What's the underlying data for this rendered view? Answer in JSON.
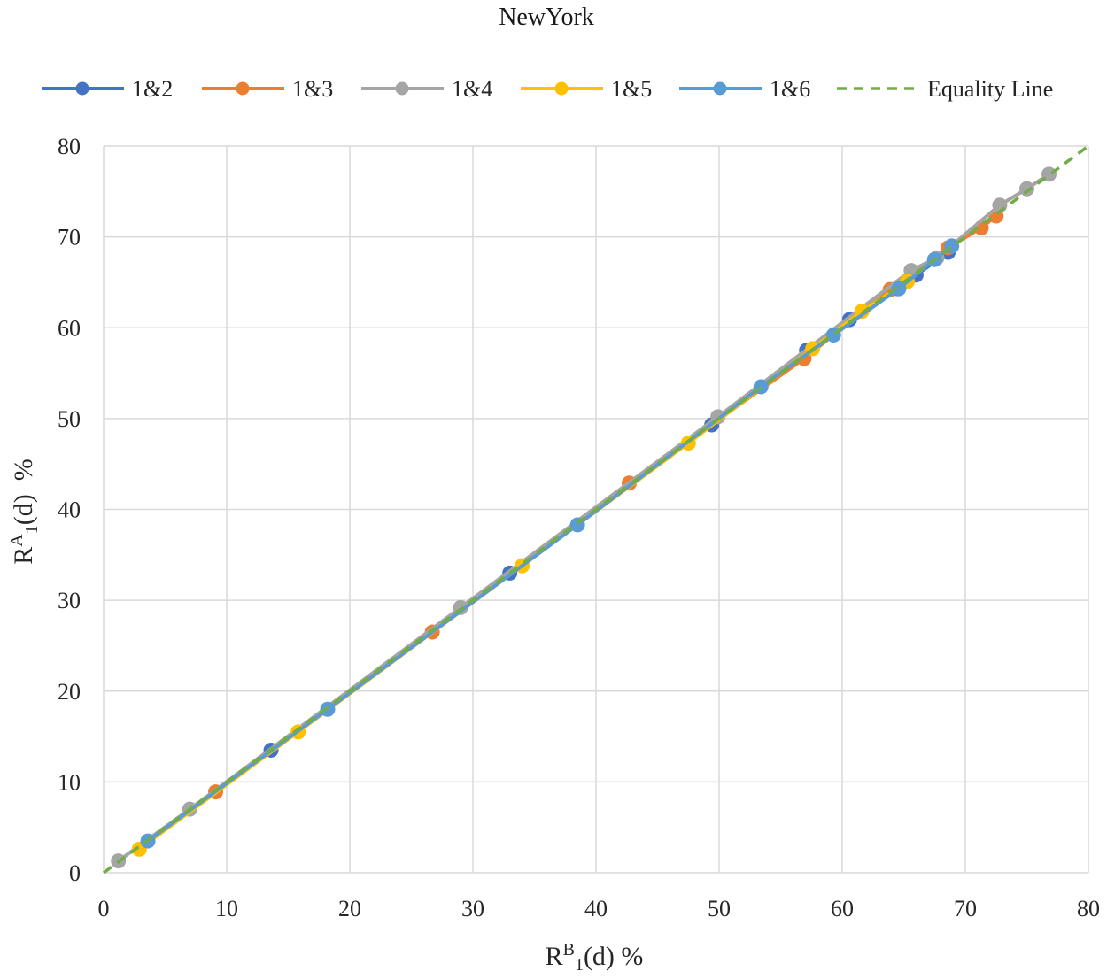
{
  "chart_data": {
    "type": "line",
    "title": "NewYork",
    "xlabel": {
      "base": "R",
      "sup": "B",
      "sub": "1",
      "tail": "(d) %"
    },
    "ylabel": {
      "base": "R",
      "sup": "A",
      "sub": "1",
      "tail": "(d)  %"
    },
    "xlim": [
      0,
      80
    ],
    "ylim": [
      0,
      80
    ],
    "xticks": [
      0,
      10,
      20,
      30,
      40,
      50,
      60,
      70,
      80
    ],
    "yticks": [
      0,
      10,
      20,
      30,
      40,
      50,
      60,
      70,
      80
    ],
    "grid": true,
    "grid_color": "#D9D9D9",
    "legend_position": "top",
    "series": [
      {
        "name": "1&2",
        "color": "#4472C4",
        "marker": "circle",
        "line_style": "solid",
        "x": [
          13.6,
          33.0,
          49.4,
          57.1,
          60.6,
          64.5,
          66.0,
          68.6
        ],
        "y": [
          13.5,
          33.0,
          49.3,
          57.5,
          60.9,
          64.3,
          65.8,
          68.3
        ]
      },
      {
        "name": "1&3",
        "color": "#ED7D31",
        "marker": "circle",
        "line_style": "solid",
        "x": [
          9.1,
          26.7,
          42.7,
          56.9,
          63.9,
          68.6,
          71.3,
          72.5
        ],
        "y": [
          8.9,
          26.5,
          42.9,
          56.6,
          64.2,
          68.8,
          71.0,
          72.3
        ]
      },
      {
        "name": "1&4",
        "color": "#A5A5A5",
        "marker": "circle",
        "line_style": "solid",
        "x": [
          1.2,
          7.0,
          29.0,
          49.9,
          65.6,
          67.7,
          72.8,
          75.0,
          76.8
        ],
        "y": [
          1.3,
          7.0,
          29.2,
          50.2,
          66.3,
          67.7,
          73.5,
          75.3,
          76.9
        ]
      },
      {
        "name": "1&5",
        "color": "#FFC000",
        "marker": "circle",
        "line_style": "solid",
        "x": [
          2.9,
          15.8,
          34.0,
          47.5,
          57.6,
          61.6,
          65.3
        ],
        "y": [
          2.6,
          15.5,
          33.8,
          47.3,
          57.7,
          61.8,
          65.1
        ]
      },
      {
        "name": "1&6",
        "color": "#5B9BD5",
        "marker": "circle",
        "line_style": "solid",
        "x": [
          3.6,
          18.2,
          38.5,
          53.4,
          59.3,
          64.6,
          67.5,
          68.9
        ],
        "y": [
          3.5,
          18.0,
          38.3,
          53.5,
          59.2,
          64.3,
          67.5,
          69.0
        ]
      },
      {
        "name": "Equality Line",
        "color": "#70AD47",
        "marker": "none",
        "line_style": "dashed",
        "x": [
          0,
          80
        ],
        "y": [
          0,
          80
        ]
      }
    ]
  }
}
